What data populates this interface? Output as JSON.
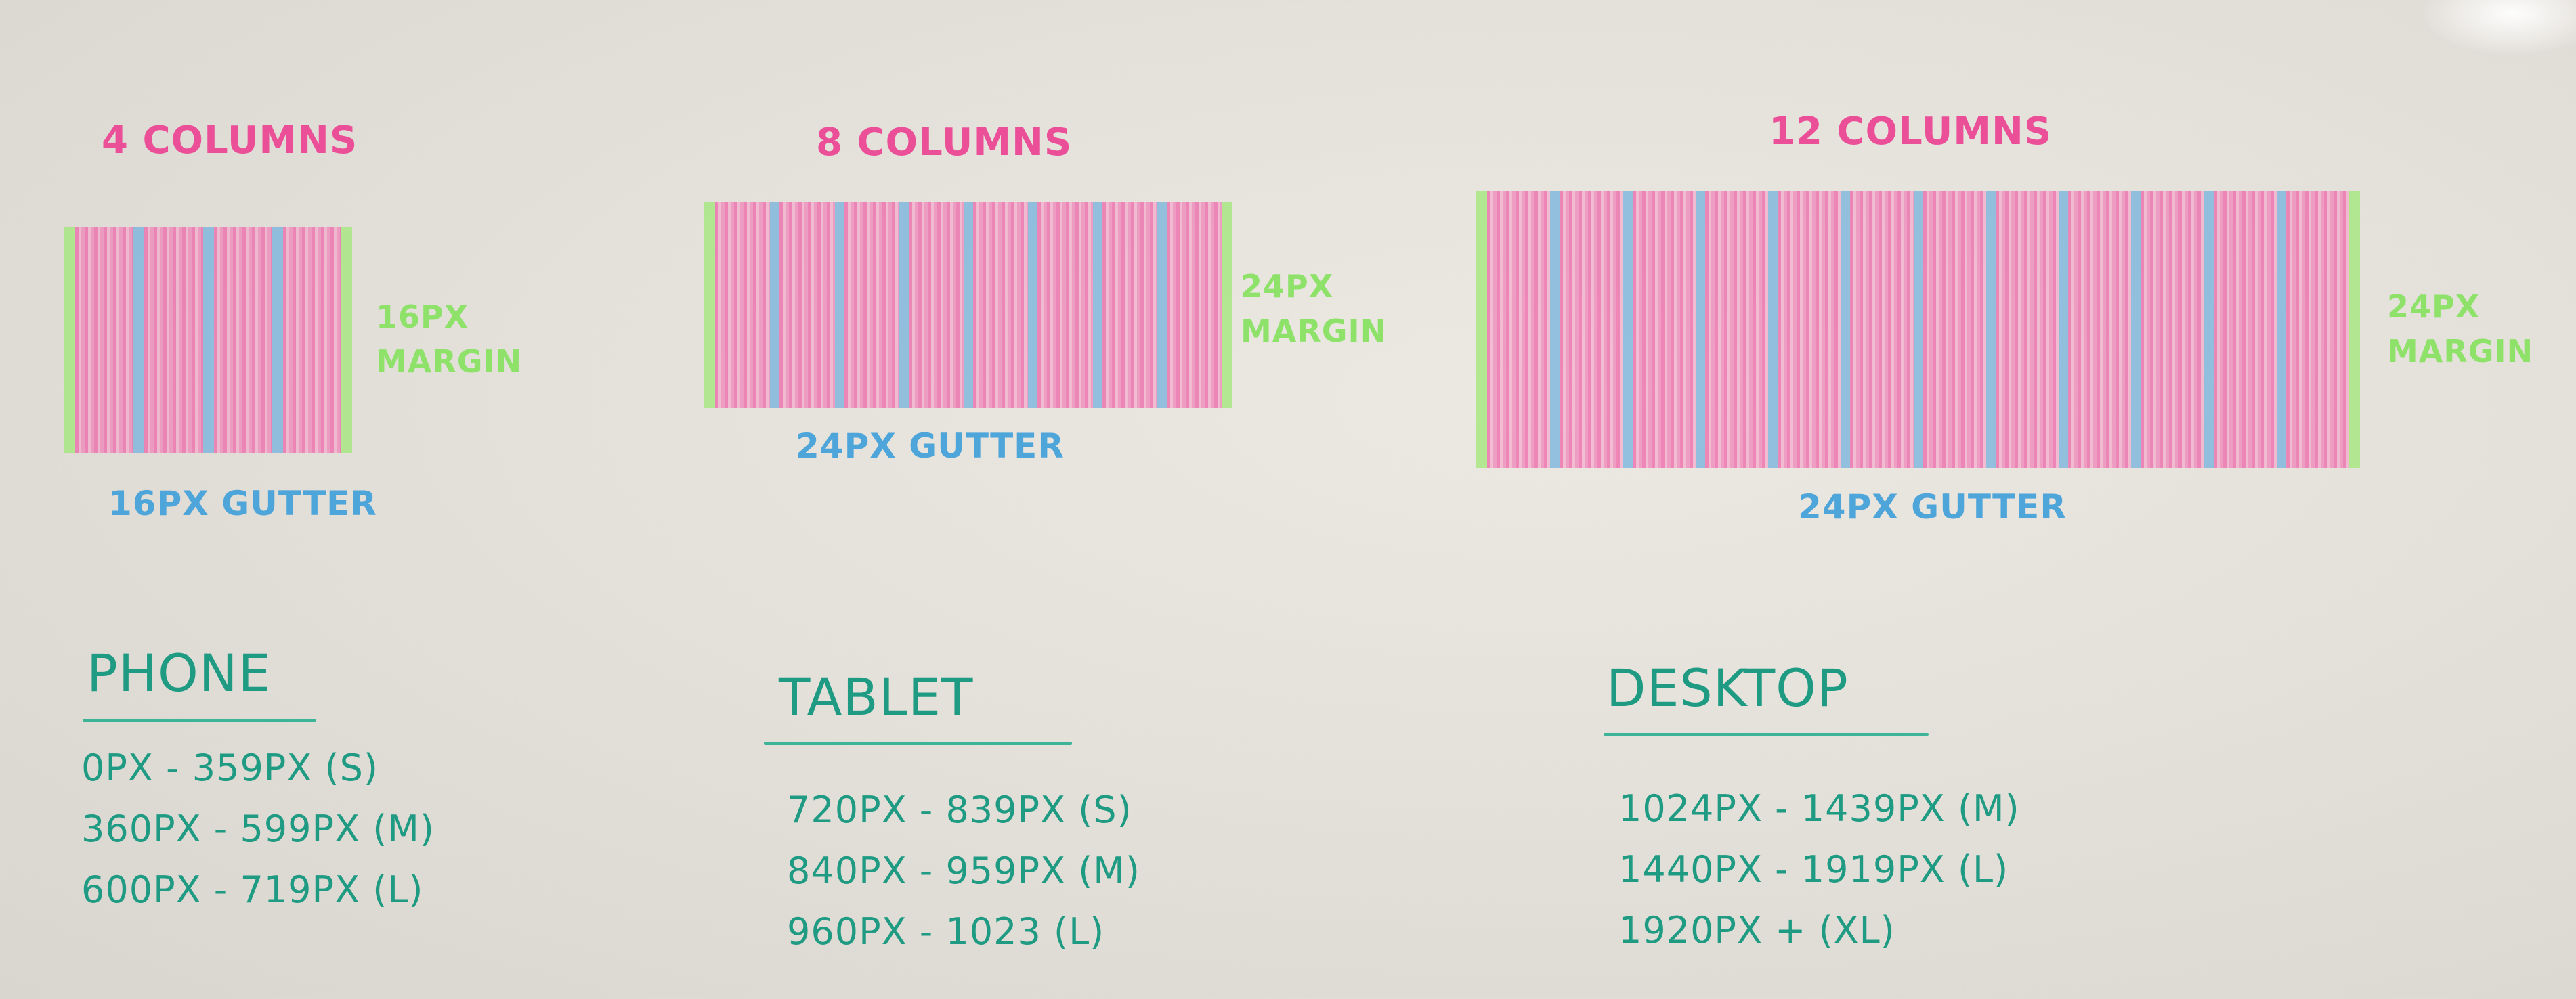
{
  "colors": {
    "board": "#e6e2dc",
    "column_pink": "#ee6aaa",
    "gutter_blue": "#6fb0dc",
    "margin_green": "#a2e87a",
    "heading_pink": "#ea4f98",
    "gutter_text_blue": "#4da5da",
    "margin_text_green": "#8ee26a",
    "breakpoint_teal": "#1e9b82"
  },
  "grids": [
    {
      "columns": 4,
      "title": "4 COLUMNS",
      "margin_line1": "16PX",
      "margin_line2": "MARGIN",
      "gutter": "16PX GUTTER"
    },
    {
      "columns": 8,
      "title": "8 COLUMNS",
      "margin_line1": "24PX",
      "margin_line2": "MARGIN",
      "gutter": "24PX GUTTER"
    },
    {
      "columns": 12,
      "title": "12 COLUMNS",
      "margin_line1": "24PX",
      "margin_line2": "MARGIN",
      "gutter": "24PX GUTTER"
    }
  ],
  "devices": [
    {
      "name": "PHONE",
      "ranges": [
        "0PX - 359PX (S)",
        "360PX - 599PX (M)",
        "600PX - 719PX (L)"
      ]
    },
    {
      "name": "TABLET",
      "ranges": [
        "720PX - 839PX (S)",
        "840PX - 959PX (M)",
        "960PX - 1023 (L)"
      ]
    },
    {
      "name": "DESKTOP",
      "ranges": [
        "1024PX - 1439PX (M)",
        "1440PX - 1919PX (L)",
        "1920PX + (XL)"
      ]
    }
  ]
}
